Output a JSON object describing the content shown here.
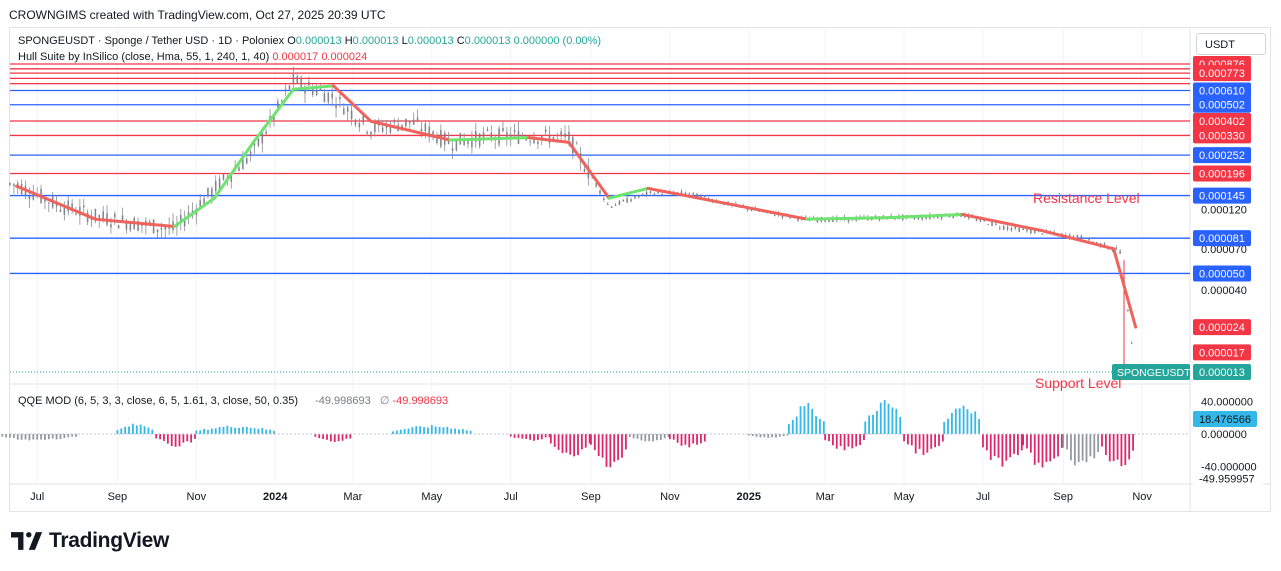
{
  "header": {
    "caption": "CROWNGIMS created with TradingView.com, Oct 27, 2025 20:39 UTC"
  },
  "legend": {
    "symbol_line": "SPONGEUSDT · Sponge / Tether USD · 1D · Poloniex",
    "ohlc": [
      {
        "key": "O",
        "value": "0.000013"
      },
      {
        "key": "H",
        "value": "0.000013"
      },
      {
        "key": "L",
        "value": "0.000013"
      },
      {
        "key": "C",
        "value": "0.000013"
      }
    ],
    "change": "0.000000 (0.00%)",
    "indicator_name": "Hull Suite by InSilico (close, Hma, 55, 1, 240, 1, 40)",
    "indicator_values": [
      "0.000017",
      "0.000024"
    ]
  },
  "currency_label": "USDT",
  "qqe_legend": {
    "name": "QQE MOD (6, 5, 3, 3, close, 6, 5, 1.61, 3, close, 50, 0.35)",
    "value_a": "-49.998693",
    "symbol": "∅",
    "value_b": "-49.998693"
  },
  "annotations": {
    "resistance": "Resistance Level",
    "support": "Support Level"
  },
  "brand": "TradingView",
  "colors": {
    "green": "#26a69a",
    "red": "#f23645",
    "blue": "#2962ff",
    "hull_green": "#6fe36f",
    "hull_red": "#f0625c",
    "qqe_blue": "#33b8e8",
    "qqe_pink": "#e0256b",
    "qqe_gray": "#9598a1"
  },
  "chart_data": [
    {
      "type": "candlestick",
      "title": "SPONGEUSDT · Sponge / Tether USD · 1D · Poloniex",
      "y_scale": "log",
      "y_tick_labels": [
        {
          "label": "0.000120",
          "value": 0.00012
        },
        {
          "label": "0.000070",
          "value": 7e-05
        },
        {
          "label": "0.000040",
          "value": 4e-05
        }
      ],
      "levels": [
        {
          "label": "0.000876",
          "value": 0.000876,
          "color": "#f23645"
        },
        {
          "label": "0.000773",
          "value": 0.000773,
          "color": "#f23645"
        },
        {
          "value": 0.00082,
          "color": "#f23645"
        },
        {
          "value": 0.00072,
          "color": "#f23645"
        },
        {
          "value": 0.00067,
          "color": "#f23645"
        },
        {
          "label": "0.000610",
          "value": 0.00061,
          "color": "#2962ff"
        },
        {
          "label": "0.000502",
          "value": 0.000502,
          "color": "#2962ff"
        },
        {
          "label": "0.000402",
          "value": 0.000402,
          "color": "#f23645"
        },
        {
          "label": "0.000330",
          "value": 0.00033,
          "color": "#f23645"
        },
        {
          "label": "0.000252",
          "value": 0.000252,
          "color": "#2962ff"
        },
        {
          "label": "0.000196",
          "value": 0.000196,
          "color": "#f23645"
        },
        {
          "label": "0.000145",
          "value": 0.000145,
          "color": "#2962ff"
        },
        {
          "label": "0.000081",
          "value": 8.1e-05,
          "color": "#2962ff"
        },
        {
          "label": "0.000050",
          "value": 5e-05,
          "color": "#2962ff"
        }
      ],
      "price_badges": [
        {
          "label": "0.000024",
          "value": 2.4e-05,
          "color": "#f23645"
        },
        {
          "label": "0.000017",
          "value": 1.7e-05,
          "color": "#f23645"
        },
        {
          "symbol": "SPONGEUSDT",
          "label": "0.000013",
          "value": 1.3e-05,
          "color": "#26a69a"
        }
      ],
      "x_tick_labels": [
        {
          "label": "Jul",
          "date": "2023-07"
        },
        {
          "label": "Sep",
          "date": "2023-09"
        },
        {
          "label": "Nov",
          "date": "2023-11"
        },
        {
          "label": "2024",
          "date": "2024-01",
          "bold": true
        },
        {
          "label": "Mar",
          "date": "2024-03"
        },
        {
          "label": "May",
          "date": "2024-05"
        },
        {
          "label": "Jul",
          "date": "2024-07"
        },
        {
          "label": "Sep",
          "date": "2024-09"
        },
        {
          "label": "Nov",
          "date": "2024-11"
        },
        {
          "label": "2025",
          "date": "2025-01",
          "bold": true
        },
        {
          "label": "Mar",
          "date": "2025-03"
        },
        {
          "label": "May",
          "date": "2025-05"
        },
        {
          "label": "Jul",
          "date": "2025-07"
        },
        {
          "label": "Sep",
          "date": "2025-09"
        },
        {
          "label": "Nov",
          "date": "2025-11"
        }
      ],
      "close_series": [
        {
          "date": "2023-06",
          "close": 0.00017
        },
        {
          "date": "2023-07",
          "close": 0.00013
        },
        {
          "date": "2023-08",
          "close": 0.00011
        },
        {
          "date": "2023-09",
          "close": 0.0001
        },
        {
          "date": "2023-10",
          "close": 9.2e-05
        },
        {
          "date": "2023-11",
          "close": 0.00016
        },
        {
          "date": "2023-12",
          "close": 0.00026
        },
        {
          "date": "2024-01",
          "close": 0.0007
        },
        {
          "date": "2024-02",
          "close": 0.00056
        },
        {
          "date": "2024-03",
          "close": 0.00036
        },
        {
          "date": "2024-04",
          "close": 0.0004
        },
        {
          "date": "2024-05",
          "close": 0.0003
        },
        {
          "date": "2024-06",
          "close": 0.00033
        },
        {
          "date": "2024-07",
          "close": 0.00033
        },
        {
          "date": "2024-08",
          "close": 0.00032
        },
        {
          "date": "2024-09",
          "close": 0.000125
        },
        {
          "date": "2024-10",
          "close": 0.00015
        },
        {
          "date": "2024-11",
          "close": 0.00015
        },
        {
          "date": "2024-12",
          "close": 0.00013
        },
        {
          "date": "2025-01",
          "close": 0.000115
        },
        {
          "date": "2025-02",
          "close": 0.000105
        },
        {
          "date": "2025-03",
          "close": 0.000105
        },
        {
          "date": "2025-04",
          "close": 0.000108
        },
        {
          "date": "2025-05",
          "close": 0.000108
        },
        {
          "date": "2025-06",
          "close": 0.000112
        },
        {
          "date": "2025-07",
          "close": 9.5e-05
        },
        {
          "date": "2025-08",
          "close": 8.8e-05
        },
        {
          "date": "2025-09",
          "close": 8.2e-05
        },
        {
          "date": "2025-10-15",
          "close": 6.8e-05
        },
        {
          "date": "2025-10-27",
          "close": 1.3e-05
        }
      ],
      "hull_series": [
        {
          "date": "2023-06",
          "value": 0.000165
        },
        {
          "date": "2023-08",
          "value": 0.000105
        },
        {
          "date": "2023-10",
          "value": 9.5e-05
        },
        {
          "date": "2023-11",
          "value": 0.00014
        },
        {
          "date": "2023-12",
          "value": 0.0003
        },
        {
          "date": "2024-01",
          "value": 0.00062
        },
        {
          "date": "2024-02",
          "value": 0.00065
        },
        {
          "date": "2024-03",
          "value": 0.0004
        },
        {
          "date": "2024-05",
          "value": 0.00031
        },
        {
          "date": "2024-07",
          "value": 0.00032
        },
        {
          "date": "2024-08",
          "value": 0.0003
        },
        {
          "date": "2024-09",
          "value": 0.00014
        },
        {
          "date": "2024-10",
          "value": 0.00016
        },
        {
          "date": "2024-12",
          "value": 0.00013
        },
        {
          "date": "2025-02",
          "value": 0.000105
        },
        {
          "date": "2025-04",
          "value": 0.000107
        },
        {
          "date": "2025-06",
          "value": 0.000112
        },
        {
          "date": "2025-08",
          "value": 9e-05
        },
        {
          "date": "2025-10-10",
          "value": 7e-05
        },
        {
          "date": "2025-10-27",
          "value": 2.4e-05
        }
      ]
    },
    {
      "type": "bar",
      "title": "QQE MOD (6, 5, 3, 3, close, 6, 5, 1.61, 3, close, 50, 0.35)",
      "y_tick_labels": [
        {
          "label": "40.000000",
          "value": 40
        },
        {
          "label": "0.000000",
          "value": 0
        },
        {
          "label": "-40.000000",
          "value": -40
        }
      ],
      "value_badges": [
        {
          "label": "18.476566",
          "value": 18.476566
        },
        {
          "label": "-49.959957",
          "value": -49.959957
        }
      ],
      "segments": [
        {
          "from": "2023-06",
          "to": "2023-08",
          "value": -8,
          "color": "gray"
        },
        {
          "from": "2023-09",
          "to": "2023-10",
          "value": 12,
          "color": "blue"
        },
        {
          "from": "2023-10",
          "to": "2023-11",
          "value": -15,
          "color": "pink"
        },
        {
          "from": "2023-11",
          "to": "2024-01",
          "value": 10,
          "color": "blue"
        },
        {
          "from": "2024-02",
          "to": "2024-03",
          "value": -10,
          "color": "pink"
        },
        {
          "from": "2024-04",
          "to": "2024-06",
          "value": 10,
          "color": "blue"
        },
        {
          "from": "2024-07",
          "to": "2024-08",
          "value": -8,
          "color": "pink"
        },
        {
          "from": "2024-08",
          "to": "2024-09",
          "value": -30,
          "color": "pink"
        },
        {
          "from": "2024-09",
          "to": "2024-10",
          "value": -38,
          "color": "pink"
        },
        {
          "from": "2024-10",
          "to": "2024-11",
          "value": -10,
          "color": "gray"
        },
        {
          "from": "2024-11",
          "to": "2024-12",
          "value": -15,
          "color": "pink"
        },
        {
          "from": "2025-01",
          "to": "2025-02",
          "value": -5,
          "color": "gray"
        },
        {
          "from": "2025-02",
          "to": "2025-03",
          "value": 35,
          "color": "blue"
        },
        {
          "from": "2025-03",
          "to": "2025-04",
          "value": -20,
          "color": "pink"
        },
        {
          "from": "2025-04",
          "to": "2025-05",
          "value": 40,
          "color": "blue"
        },
        {
          "from": "2025-05",
          "to": "2025-06",
          "value": -25,
          "color": "pink"
        },
        {
          "from": "2025-06",
          "to": "2025-07",
          "value": 38,
          "color": "blue"
        },
        {
          "from": "2025-07",
          "to": "2025-08",
          "value": -40,
          "color": "pink"
        },
        {
          "from": "2025-08",
          "to": "2025-09",
          "value": -40,
          "color": "pink"
        },
        {
          "from": "2025-09",
          "to": "2025-10",
          "value": -40,
          "color": "gray"
        },
        {
          "from": "2025-10",
          "to": "2025-10-27",
          "value": -40,
          "color": "pink"
        }
      ]
    }
  ]
}
